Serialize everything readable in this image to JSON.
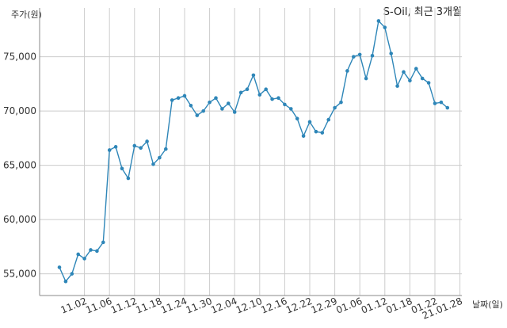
{
  "chart_data": {
    "type": "line",
    "title": "S-Oil, 최근 3개월",
    "ylabel": "주가(원)",
    "xlabel": "날짜(일)",
    "ylim": [
      53000,
      79500
    ],
    "yticks": [
      55000,
      60000,
      65000,
      70000,
      75000
    ],
    "ytick_labels": [
      "55,000",
      "60,000",
      "65,000",
      "70,000",
      "75,000"
    ],
    "xtick_labels": [
      "11.02",
      "11.06",
      "11.12",
      "11.18",
      "11.24",
      "11.30",
      "12.04",
      "12.10",
      "12.16",
      "12.22",
      "12.29",
      "01.06",
      "01.12",
      "01.18",
      "01.22",
      "21.01.28"
    ],
    "xtick_index": [
      4,
      8,
      12,
      16,
      20,
      24,
      28,
      32,
      36,
      40,
      44,
      48,
      52,
      56,
      60,
      64
    ],
    "grid": true,
    "line_color": "#2e86b8",
    "series": [
      {
        "values": [
          55600,
          54300,
          55000,
          56800,
          56400,
          57200,
          57100,
          57900,
          66400,
          66700,
          64700,
          63800,
          66800,
          66600,
          67200,
          65100,
          65700,
          66500,
          71000,
          71200,
          71400,
          70500,
          69600,
          70000,
          70800,
          71200,
          70200,
          70700,
          69900,
          71700,
          72000,
          73300,
          71500,
          72000,
          71100,
          71200,
          70600,
          70200,
          69300,
          67700,
          69000,
          68100,
          68000,
          69200,
          70300,
          70800,
          73700,
          75000,
          75200,
          73000,
          75100,
          78300,
          77700,
          75300,
          72300,
          73600,
          72800,
          73900,
          73000,
          72600,
          70700,
          70800,
          70300
        ]
      }
    ]
  }
}
